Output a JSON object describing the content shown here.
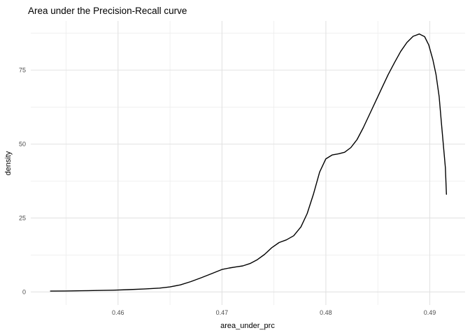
{
  "colors": {
    "background": "#ffffff",
    "grid_major": "#e2e2e2",
    "grid_minor": "#ececec",
    "curve": "#000000",
    "tick_text": "#4d4d4d",
    "title_text": "#000000"
  },
  "chart_data": {
    "type": "line",
    "title": "Area under the Precision-Recall curve",
    "xlabel": "area_under_prc",
    "ylabel": "density",
    "grid": true,
    "legend": false,
    "x_domain": [
      0.4516,
      0.4934
    ],
    "y_domain": [
      -4.4,
      91.6
    ],
    "x_ticks": {
      "values": [
        0.46,
        0.47,
        0.48,
        0.49
      ],
      "labels": [
        "0.46",
        "0.47",
        "0.48",
        "0.49"
      ]
    },
    "x_minor_ticks": [
      0.455,
      0.465,
      0.475,
      0.485
    ],
    "y_ticks": {
      "values": [
        0,
        25,
        50,
        75
      ],
      "labels": [
        "0",
        "25",
        "50",
        "75"
      ]
    },
    "y_minor_ticks": [
      12.5,
      37.5,
      62.5,
      87.5
    ],
    "series": [
      {
        "name": "density",
        "color": "#000000",
        "points": [
          [
            0.4535,
            0.3
          ],
          [
            0.455,
            0.35
          ],
          [
            0.4565,
            0.4
          ],
          [
            0.458,
            0.5
          ],
          [
            0.4595,
            0.6
          ],
          [
            0.461,
            0.8
          ],
          [
            0.4625,
            1.0
          ],
          [
            0.464,
            1.3
          ],
          [
            0.465,
            1.7
          ],
          [
            0.466,
            2.4
          ],
          [
            0.467,
            3.5
          ],
          [
            0.468,
            4.8
          ],
          [
            0.469,
            6.2
          ],
          [
            0.47,
            7.6
          ],
          [
            0.4707,
            8.1
          ],
          [
            0.4714,
            8.5
          ],
          [
            0.472,
            8.8
          ],
          [
            0.4727,
            9.6
          ],
          [
            0.4734,
            10.9
          ],
          [
            0.4741,
            12.7
          ],
          [
            0.4748,
            15.0
          ],
          [
            0.4755,
            16.7
          ],
          [
            0.4762,
            17.6
          ],
          [
            0.4769,
            19.0
          ],
          [
            0.4776,
            22.0
          ],
          [
            0.4782,
            26.5
          ],
          [
            0.4788,
            33.0
          ],
          [
            0.4794,
            40.5
          ],
          [
            0.48,
            45.0
          ],
          [
            0.4806,
            46.3
          ],
          [
            0.4812,
            46.7
          ],
          [
            0.4818,
            47.2
          ],
          [
            0.4824,
            48.8
          ],
          [
            0.483,
            51.5
          ],
          [
            0.4836,
            55.5
          ],
          [
            0.4842,
            60.0
          ],
          [
            0.4848,
            64.5
          ],
          [
            0.4854,
            69.0
          ],
          [
            0.486,
            73.5
          ],
          [
            0.4866,
            77.5
          ],
          [
            0.4872,
            81.3
          ],
          [
            0.4878,
            84.3
          ],
          [
            0.4884,
            86.4
          ],
          [
            0.489,
            87.2
          ],
          [
            0.4895,
            86.3
          ],
          [
            0.4899,
            83.5
          ],
          [
            0.4903,
            78.5
          ],
          [
            0.4906,
            73.5
          ],
          [
            0.4909,
            66.0
          ],
          [
            0.4911,
            58.0
          ],
          [
            0.4913,
            50.0
          ],
          [
            0.4915,
            42.0
          ],
          [
            0.4916,
            33.0
          ]
        ]
      }
    ]
  }
}
